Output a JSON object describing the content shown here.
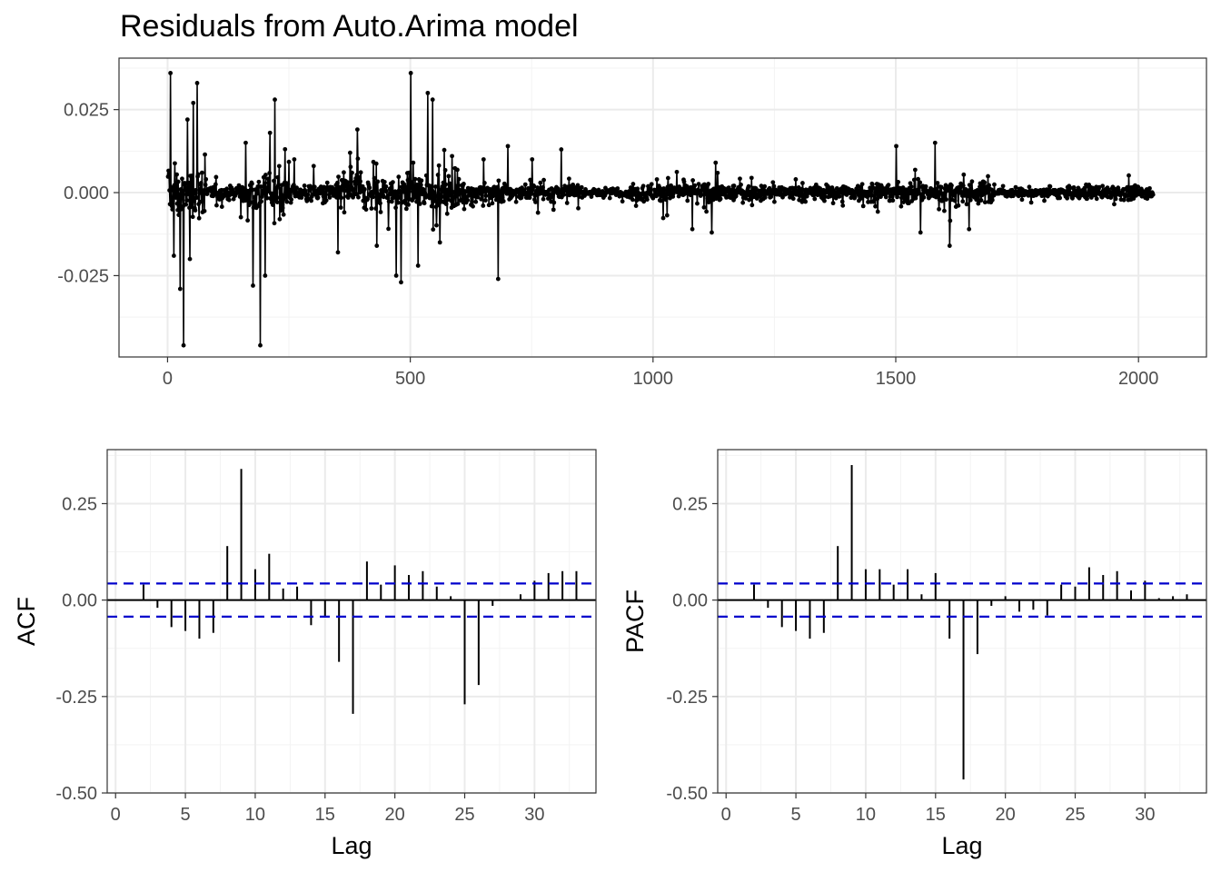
{
  "chart_data": [
    {
      "id": "residuals",
      "type": "line",
      "title": "Residuals from Auto.Arima model",
      "xlabel": "",
      "ylabel": "",
      "xlim": [
        -100,
        2140
      ],
      "ylim": [
        -0.0495,
        0.0405
      ],
      "x_ticks": [
        0,
        500,
        1000,
        1500,
        2000
      ],
      "x_tick_labels": [
        "0",
        "500",
        "1000",
        "1500",
        "2000"
      ],
      "y_ticks": [
        0.025,
        0.0,
        -0.025
      ],
      "y_tick_labels": [
        "0.025",
        "0.000",
        "-0.025"
      ],
      "grid": true,
      "markers": true,
      "n_points": 2030,
      "spikes": [
        [
          5,
          0.036
        ],
        [
          12,
          -0.019
        ],
        [
          25,
          -0.029
        ],
        [
          32,
          -0.046
        ],
        [
          40,
          0.022
        ],
        [
          45,
          -0.02
        ],
        [
          52,
          0.027
        ],
        [
          60,
          0.033
        ],
        [
          70,
          0.006
        ],
        [
          160,
          0.015
        ],
        [
          175,
          -0.028
        ],
        [
          190,
          -0.046
        ],
        [
          200,
          -0.025
        ],
        [
          210,
          0.018
        ],
        [
          220,
          0.028
        ],
        [
          230,
          -0.008
        ],
        [
          260,
          0.01
        ],
        [
          300,
          0.008
        ],
        [
          350,
          -0.018
        ],
        [
          375,
          0.012
        ],
        [
          390,
          0.019
        ],
        [
          430,
          -0.016
        ],
        [
          470,
          -0.025
        ],
        [
          480,
          -0.027
        ],
        [
          500,
          0.036
        ],
        [
          515,
          -0.022
        ],
        [
          535,
          0.03
        ],
        [
          545,
          0.028
        ],
        [
          560,
          -0.015
        ],
        [
          585,
          0.011
        ],
        [
          650,
          0.01
        ],
        [
          680,
          -0.026
        ],
        [
          700,
          0.014
        ],
        [
          750,
          0.01
        ],
        [
          810,
          0.013
        ],
        [
          1080,
          -0.011
        ],
        [
          1120,
          -0.012
        ],
        [
          1500,
          0.014
        ],
        [
          1550,
          -0.012
        ],
        [
          1580,
          0.015
        ],
        [
          1610,
          -0.016
        ],
        [
          1650,
          -0.011
        ]
      ]
    },
    {
      "id": "acf",
      "type": "bar",
      "xlabel": "Lag",
      "ylabel": "ACF",
      "xlim": [
        -0.6,
        34.4
      ],
      "ylim": [
        -0.5,
        0.39
      ],
      "x_ticks": [
        0,
        5,
        10,
        15,
        20,
        25,
        30
      ],
      "x_tick_labels": [
        "0",
        "5",
        "10",
        "15",
        "20",
        "25",
        "30"
      ],
      "y_ticks": [
        0.25,
        0.0,
        -0.25,
        -0.5
      ],
      "y_tick_labels": [
        "0.25",
        "0.00",
        "-0.25",
        "-0.50"
      ],
      "ci": 0.043,
      "lags": [
        1,
        2,
        3,
        4,
        5,
        6,
        7,
        8,
        9,
        10,
        11,
        12,
        13,
        14,
        15,
        16,
        17,
        18,
        19,
        20,
        21,
        22,
        23,
        24,
        25,
        26,
        27,
        28,
        29,
        30,
        31,
        32,
        33
      ],
      "values": [
        0.0,
        0.04,
        -0.02,
        -0.07,
        -0.08,
        -0.1,
        -0.085,
        0.14,
        0.34,
        0.08,
        0.12,
        0.03,
        0.035,
        -0.065,
        -0.045,
        -0.16,
        -0.295,
        0.1,
        0.04,
        0.09,
        0.065,
        0.075,
        0.035,
        0.01,
        -0.27,
        -0.22,
        -0.015,
        0.0,
        0.015,
        0.05,
        0.07,
        0.075,
        0.075
      ]
    },
    {
      "id": "pacf",
      "type": "bar",
      "xlabel": "Lag",
      "ylabel": "PACF",
      "xlim": [
        -0.6,
        34.4
      ],
      "ylim": [
        -0.5,
        0.39
      ],
      "x_ticks": [
        0,
        5,
        10,
        15,
        20,
        25,
        30
      ],
      "x_tick_labels": [
        "0",
        "5",
        "10",
        "15",
        "20",
        "25",
        "30"
      ],
      "y_ticks": [
        0.25,
        0.0,
        -0.25,
        -0.5
      ],
      "y_tick_labels": [
        "0.25",
        "0.00",
        "-0.25",
        "-0.50"
      ],
      "ci": 0.043,
      "lags": [
        1,
        2,
        3,
        4,
        5,
        6,
        7,
        8,
        9,
        10,
        11,
        12,
        13,
        14,
        15,
        16,
        17,
        18,
        19,
        20,
        21,
        22,
        23,
        24,
        25,
        26,
        27,
        28,
        29,
        30,
        31,
        32,
        33
      ],
      "values": [
        0.0,
        0.04,
        -0.02,
        -0.07,
        -0.08,
        -0.1,
        -0.085,
        0.14,
        0.35,
        0.08,
        0.08,
        0.04,
        0.08,
        0.015,
        0.07,
        -0.1,
        -0.465,
        -0.14,
        -0.015,
        0.01,
        -0.03,
        -0.025,
        -0.04,
        0.04,
        0.035,
        0.085,
        0.065,
        0.075,
        0.025,
        0.05,
        0.005,
        0.01,
        0.015
      ]
    }
  ],
  "colors": {
    "ink": "#000000",
    "ci": "#0000cc",
    "grid": "#ebebeb",
    "tick_text": "#4d4d4d",
    "border": "#333333"
  }
}
